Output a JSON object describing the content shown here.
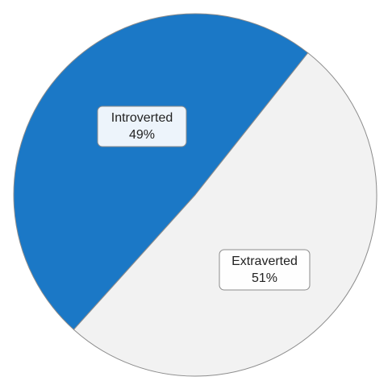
{
  "chart_data": {
    "type": "pie",
    "title": "",
    "slices": [
      {
        "label": "Introverted",
        "value": 49,
        "value_label": "49%",
        "color": "#1b78c6"
      },
      {
        "label": "Extraverted",
        "value": 51,
        "value_label": "51%",
        "color": "#f2f2f2"
      }
    ],
    "legend": "none",
    "data_labels": "inside, boxed, category name and percentage",
    "outline_color": "#8c8c8c"
  }
}
